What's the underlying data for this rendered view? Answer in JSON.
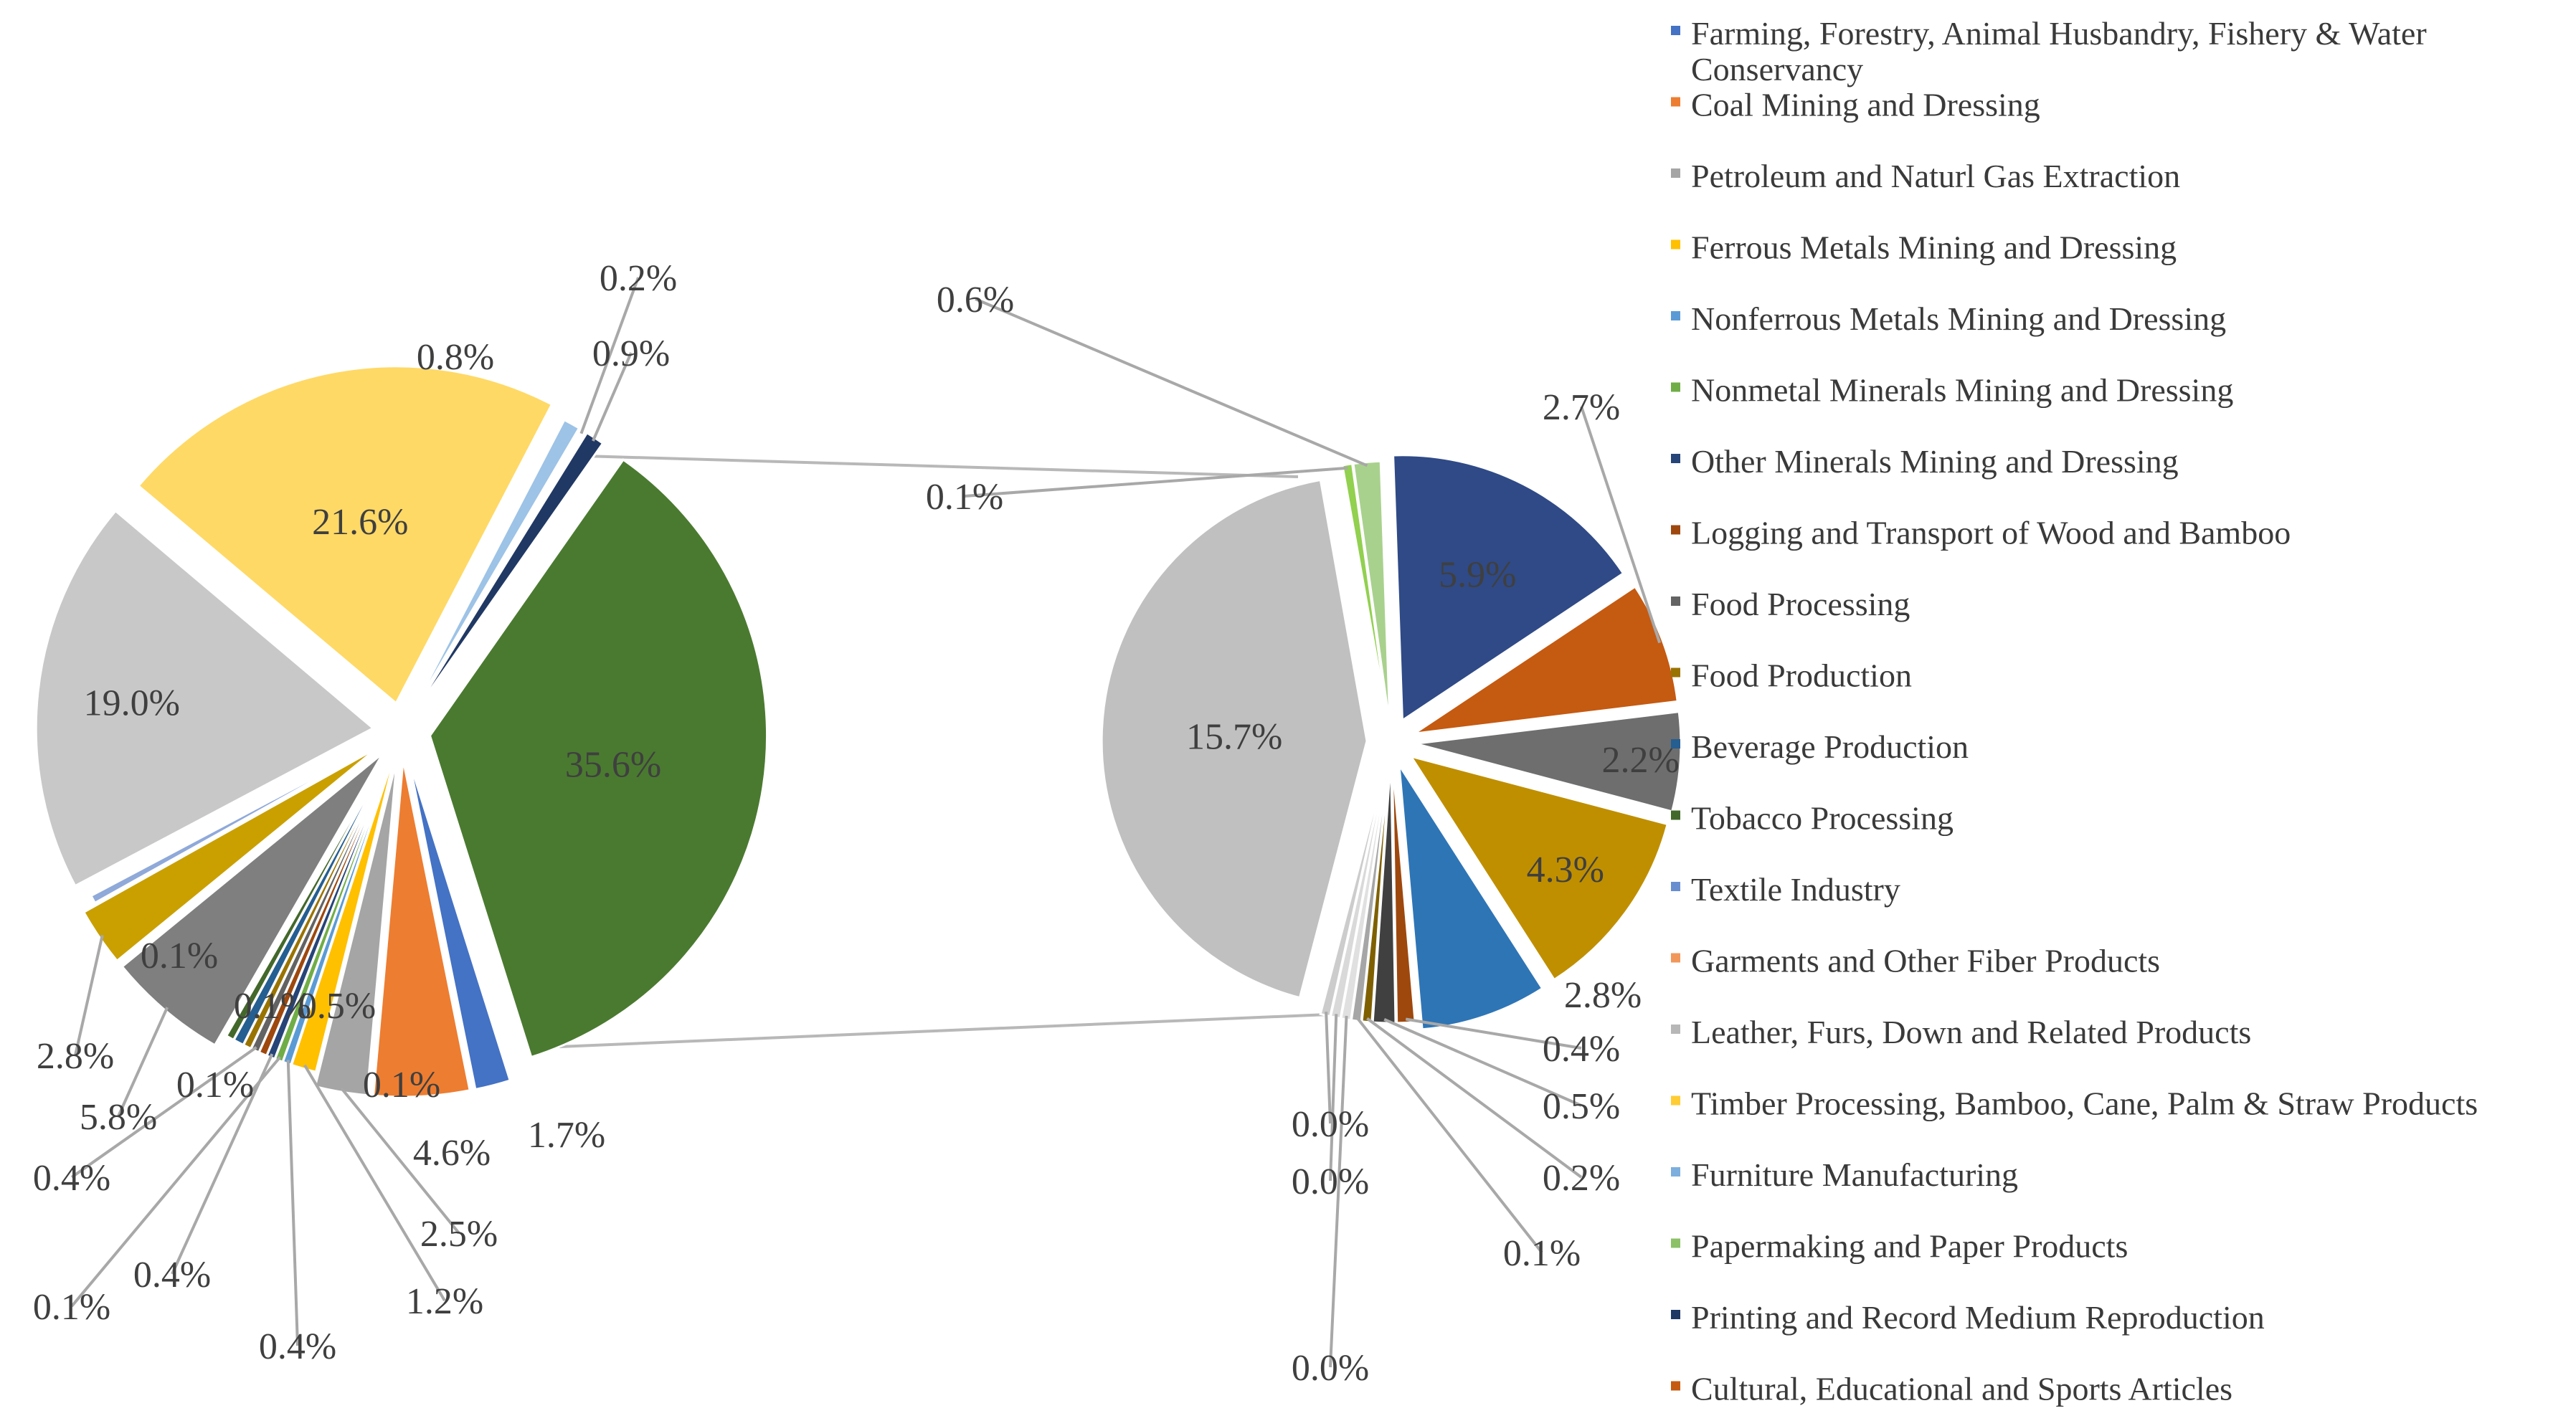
{
  "chart_data": {
    "type": "pie-of-pie",
    "title": "",
    "main_pie": {
      "slices": [
        {
          "series": "Tobacco Processing",
          "value": 35.6,
          "label": "35.6%",
          "color": "#4a7a30"
        },
        {
          "series": "Textile Industry",
          "value": 1.7,
          "label": "1.7%",
          "color": "#4472c4"
        },
        {
          "series": "Coal Mining and Dressing",
          "value": 4.6,
          "label": "4.6%",
          "color": "#ed7d31"
        },
        {
          "series": "Petroleum and Naturl Gas Extraction",
          "value": 2.5,
          "label": "2.5%",
          "color": "#a5a5a5"
        },
        {
          "series": "Ferrous Metals Mining and Dressing",
          "value": 1.2,
          "label": "1.2%",
          "color": "#ffc000"
        },
        {
          "series": "slice",
          "value": 0.4,
          "label": "0.4%",
          "color": "#5b9bd5"
        },
        {
          "series": "slice",
          "value": 0.1,
          "label": "0.1%",
          "color": "#70ad47"
        },
        {
          "series": "slice",
          "value": 0.4,
          "label": "0.4%",
          "color": "#264478"
        },
        {
          "series": "slice",
          "value": 0.1,
          "label": "0.1%",
          "color": "#9e480e"
        },
        {
          "series": "slice",
          "value": 0.4,
          "label": "0.4%",
          "color": "#636363"
        },
        {
          "series": "slice",
          "value": 0.1,
          "label": "0.1%",
          "color": "#997300"
        },
        {
          "series": "slice",
          "value": 0.5,
          "label": "0.5%",
          "color": "#255e91"
        },
        {
          "series": "slice",
          "value": 0.1,
          "label": "0.1%",
          "color": "#43682b"
        },
        {
          "series": "Food Processing",
          "value": 5.8,
          "label": "5.8%",
          "color": "#7f7f7f"
        },
        {
          "series": "Food Production",
          "value": 2.8,
          "label": "2.8%",
          "color": "#c9a000"
        },
        {
          "series": "slice",
          "value": 0.1,
          "label": "0.1%",
          "color": "#8fa9d9"
        },
        {
          "series": "Leather, Furs, Down and Related Products",
          "value": 19.0,
          "label": "19.0%",
          "color": "#c8c8c8"
        },
        {
          "series": "Timber Processing, Bamboo, Cane, Palm & Straw Products",
          "value": 21.6,
          "label": "21.6%",
          "color": "#ffd966"
        },
        {
          "series": "Furniture Manufacturing",
          "value": 0.8,
          "label": "0.8%",
          "color": "#9dc3e6"
        },
        {
          "series": "slice",
          "value": 0.2,
          "label": "0.2%",
          "color": "#ffffff"
        },
        {
          "series": "Printing and Record Medium Reproduction",
          "value": 0.9,
          "label": "0.9%",
          "color": "#203864"
        }
      ]
    },
    "secondary_pie": {
      "slices": [
        {
          "series": "Printing and Record Medium Reproduction",
          "value": 5.9,
          "label": "5.9%",
          "color": "#2f4a86"
        },
        {
          "series": "Cultural, Educational and Sports Articles",
          "value": 2.7,
          "label": "2.7%",
          "color": "#c55a11"
        },
        {
          "series": "Food Processing",
          "value": 2.2,
          "label": "2.2%",
          "color": "#6e6e6e"
        },
        {
          "series": "Food Production",
          "value": 4.3,
          "label": "4.3%",
          "color": "#bf8f00"
        },
        {
          "series": "Beverage Production",
          "value": 2.8,
          "label": "2.8%",
          "color": "#2e75b6"
        },
        {
          "series": "Logging and Transport of Wood and Bamboo",
          "value": 0.4,
          "label": "0.4%",
          "color": "#9e480e"
        },
        {
          "series": "slice",
          "value": 0.5,
          "label": "0.5%",
          "color": "#404040"
        },
        {
          "series": "slice",
          "value": 0.2,
          "label": "0.2%",
          "color": "#7f6000"
        },
        {
          "series": "slice",
          "value": 0.1,
          "label": "0.1%",
          "color": "#a6a6a6"
        },
        {
          "series": "slice",
          "value": 0.0,
          "label": "0.0%",
          "color": "#e0e0e0"
        },
        {
          "series": "slice",
          "value": 0.0,
          "label": "0.0%",
          "color": "#d9d9d9"
        },
        {
          "series": "slice",
          "value": 0.0,
          "label": "0.0%",
          "color": "#cccccc"
        },
        {
          "series": "Leather, Furs, Down and Related Products",
          "value": 15.7,
          "label": "15.7%",
          "color": "#c0c0c0"
        },
        {
          "series": "Nonmetal Minerals Mining and Dressing",
          "value": 0.1,
          "label": "0.1%",
          "color": "#92d050"
        },
        {
          "series": "Papermaking and Paper Products",
          "value": 0.6,
          "label": "0.6%",
          "color": "#a9d18e"
        }
      ]
    },
    "legend": {
      "position": "right",
      "entries": [
        {
          "label": "Farming, Forestry, Animal Husbandry, Fishery & Water Conservancy",
          "color": "#4472c4"
        },
        {
          "label": "Coal Mining and Dressing",
          "color": "#ed7d31"
        },
        {
          "label": "Petroleum and Naturl Gas Extraction",
          "color": "#a5a5a5"
        },
        {
          "label": "Ferrous Metals Mining and Dressing",
          "color": "#ffc000"
        },
        {
          "label": "Nonferrous Metals Mining and Dressing",
          "color": "#5b9bd5"
        },
        {
          "label": "Nonmetal Minerals Mining and Dressing",
          "color": "#70ad47"
        },
        {
          "label": "Other Minerals Mining and Dressing",
          "color": "#264478"
        },
        {
          "label": "Logging and Transport of Wood and Bamboo",
          "color": "#9e480e"
        },
        {
          "label": "Food Processing",
          "color": "#636363"
        },
        {
          "label": "Food Production",
          "color": "#997300"
        },
        {
          "label": "Beverage Production",
          "color": "#255e91"
        },
        {
          "label": "Tobacco Processing",
          "color": "#43682b"
        },
        {
          "label": "Textile Industry",
          "color": "#698ed0"
        },
        {
          "label": "Garments and Other Fiber Products",
          "color": "#f1975a"
        },
        {
          "label": "Leather, Furs, Down and Related Products",
          "color": "#b7b7b7"
        },
        {
          "label": "Timber Processing, Bamboo, Cane, Palm & Straw Products",
          "color": "#ffcd33"
        },
        {
          "label": "Furniture Manufacturing",
          "color": "#7cafdd"
        },
        {
          "label": "Papermaking and Paper Products",
          "color": "#8cc168"
        },
        {
          "label": "Printing and Record Medium Reproduction",
          "color": "#1f3864"
        },
        {
          "label": "Cultural, Educational and Sports Articles",
          "color": "#c55a11"
        }
      ]
    }
  }
}
